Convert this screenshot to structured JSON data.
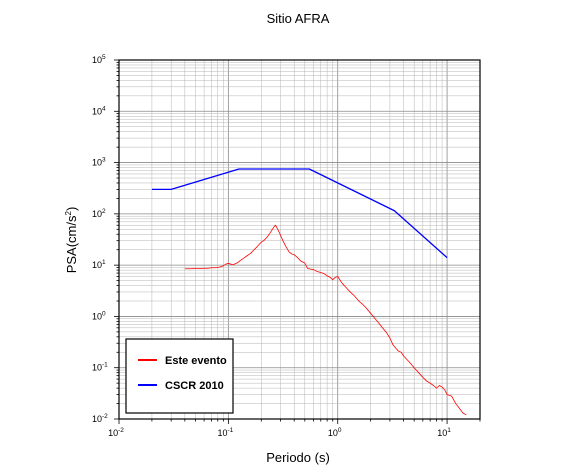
{
  "chart_data": {
    "type": "line",
    "title": "Sitio AFRA",
    "xlabel": "Periodo (s)",
    "ylabel_base": "PSA(cm/s",
    "ylabel_exp": "2",
    "ylabel_close": ")",
    "x_scale": "log",
    "y_scale": "log",
    "xlim": [
      0.01,
      20
    ],
    "ylim": [
      0.01,
      100000
    ],
    "grid": true,
    "legend_position": "bottom-left",
    "x_ticks": [
      {
        "base": "10",
        "exp": "-2",
        "value": 0.01
      },
      {
        "base": "10",
        "exp": "-1",
        "value": 0.1
      },
      {
        "base": "10",
        "exp": "0",
        "value": 1
      },
      {
        "base": "10",
        "exp": "1",
        "value": 10
      }
    ],
    "y_ticks": [
      {
        "base": "10",
        "exp": "-2",
        "value": 0.01
      },
      {
        "base": "10",
        "exp": "-1",
        "value": 0.1
      },
      {
        "base": "10",
        "exp": "0",
        "value": 1
      },
      {
        "base": "10",
        "exp": "1",
        "value": 10
      },
      {
        "base": "10",
        "exp": "2",
        "value": 100
      },
      {
        "base": "10",
        "exp": "3",
        "value": 1000
      },
      {
        "base": "10",
        "exp": "4",
        "value": 10000
      },
      {
        "base": "10",
        "exp": "5",
        "value": 100000
      }
    ],
    "series": [
      {
        "name": "Este evento",
        "color": "#ff0000",
        "x": [
          0.04,
          0.045,
          0.05,
          0.055,
          0.06,
          0.065,
          0.07,
          0.075,
          0.08,
          0.085,
          0.09,
          0.095,
          0.1,
          0.11,
          0.12,
          0.13,
          0.14,
          0.15,
          0.16,
          0.17,
          0.18,
          0.19,
          0.2,
          0.21,
          0.22,
          0.23,
          0.24,
          0.25,
          0.26,
          0.27,
          0.28,
          0.29,
          0.3,
          0.32,
          0.34,
          0.36,
          0.38,
          0.4,
          0.43,
          0.46,
          0.5,
          0.53,
          0.56,
          0.6,
          0.65,
          0.7,
          0.75,
          0.8,
          0.85,
          0.9,
          0.95,
          1.0,
          1.1,
          1.2,
          1.3,
          1.4,
          1.5,
          1.6,
          1.7,
          1.8,
          2.0,
          2.2,
          2.4,
          2.6,
          2.8,
          3.0,
          3.2,
          3.4,
          3.6,
          3.8,
          4.0,
          4.5,
          5.0,
          5.5,
          6.0,
          6.5,
          7.0,
          7.5,
          8.0,
          8.5,
          9.0,
          9.5,
          10.0,
          11.0,
          12.0,
          13.0,
          14.0,
          15.0
        ],
        "y": [
          8.5,
          8.5,
          8.6,
          8.6,
          8.7,
          8.7,
          8.9,
          8.9,
          9.0,
          9.3,
          9.7,
          10.5,
          10.8,
          10.2,
          11.0,
          12.5,
          14.0,
          15.5,
          17.0,
          19.5,
          22.0,
          25.0,
          28.0,
          30.0,
          33.0,
          37.0,
          42.0,
          48.0,
          55.0,
          60.0,
          52.0,
          45.0,
          38.0,
          28.0,
          22.0,
          18.0,
          16.5,
          16.0,
          14.0,
          12.0,
          11.0,
          8.6,
          8.4,
          8.2,
          7.5,
          7.2,
          6.8,
          6.2,
          5.8,
          5.2,
          5.8,
          6.0,
          4.4,
          3.6,
          3.0,
          2.6,
          2.2,
          1.9,
          1.7,
          1.5,
          1.15,
          0.9,
          0.72,
          0.58,
          0.48,
          0.38,
          0.28,
          0.24,
          0.21,
          0.2,
          0.17,
          0.13,
          0.1,
          0.08,
          0.065,
          0.055,
          0.05,
          0.045,
          0.04,
          0.045,
          0.042,
          0.037,
          0.03,
          0.028,
          0.02,
          0.016,
          0.013,
          0.012
        ]
      },
      {
        "name": "CSCR 2010",
        "color": "#0000ff",
        "x": [
          0.02,
          0.03,
          0.125,
          0.55,
          3.3,
          10.0
        ],
        "y": [
          300,
          300,
          750,
          750,
          115,
          14
        ]
      }
    ]
  },
  "legend": {
    "items": [
      {
        "label": "Este evento",
        "color": "#ff0000"
      },
      {
        "label": "CSCR 2010",
        "color": "#0000ff"
      }
    ]
  }
}
